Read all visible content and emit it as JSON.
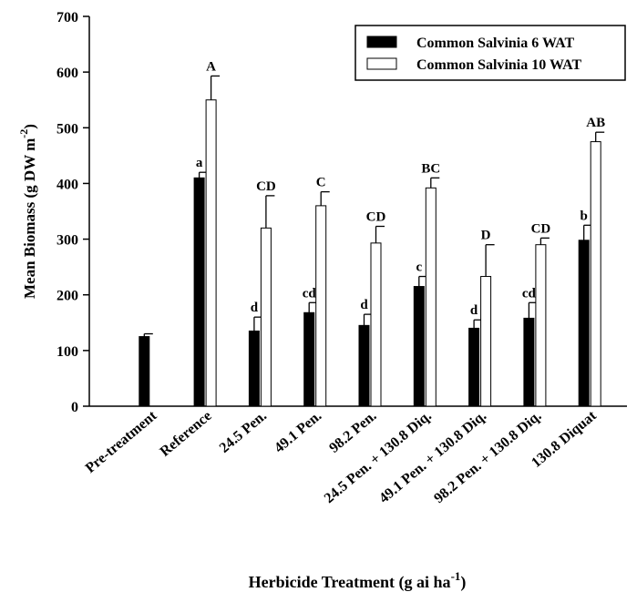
{
  "chart_data": {
    "type": "bar",
    "title": "",
    "ylabel": "Mean Biomass (g DW m",
    "ylabel_sup": "-2",
    "ylabel_end": ")",
    "xlabel": "Herbicide Treatment (g ai ha",
    "xlabel_sup": "-1",
    "xlabel_end": ")",
    "ylim": [
      0,
      700
    ],
    "yticks": [
      "0",
      "100",
      "200",
      "300",
      "400",
      "500",
      "600",
      "700"
    ],
    "grid": false,
    "legend_position": "top-right",
    "categories": [
      "Pre-treatment",
      "Reference",
      "24.5 Pen.",
      "49.1 Pen.",
      "98.2 Pen.",
      "24.5 Pen. + 130.8 Diq.",
      "49.1 Pen. + 130.8 Diq.",
      "98.2 Pen. + 130.8 Diq.",
      "130.8 Diquat"
    ],
    "series": [
      {
        "name": "Common Salvinia 6 WAT",
        "color": "#000000",
        "values": [
          125,
          410,
          135,
          168,
          145,
          215,
          140,
          158,
          298
        ],
        "errors": [
          5,
          10,
          25,
          18,
          20,
          18,
          15,
          28,
          27
        ],
        "letters": [
          "",
          "a",
          "d",
          "cd",
          "d",
          "c",
          "d",
          "cd",
          "b"
        ]
      },
      {
        "name": "Common Salvinia 10 WAT",
        "color": "#ffffff",
        "values": [
          null,
          550,
          320,
          360,
          293,
          392,
          233,
          290,
          475
        ],
        "errors": [
          null,
          43,
          58,
          25,
          30,
          18,
          57,
          12,
          17
        ],
        "letters": [
          "",
          "A",
          "CD",
          "C",
          "CD",
          "BC",
          "D",
          "CD",
          "AB"
        ]
      }
    ]
  }
}
